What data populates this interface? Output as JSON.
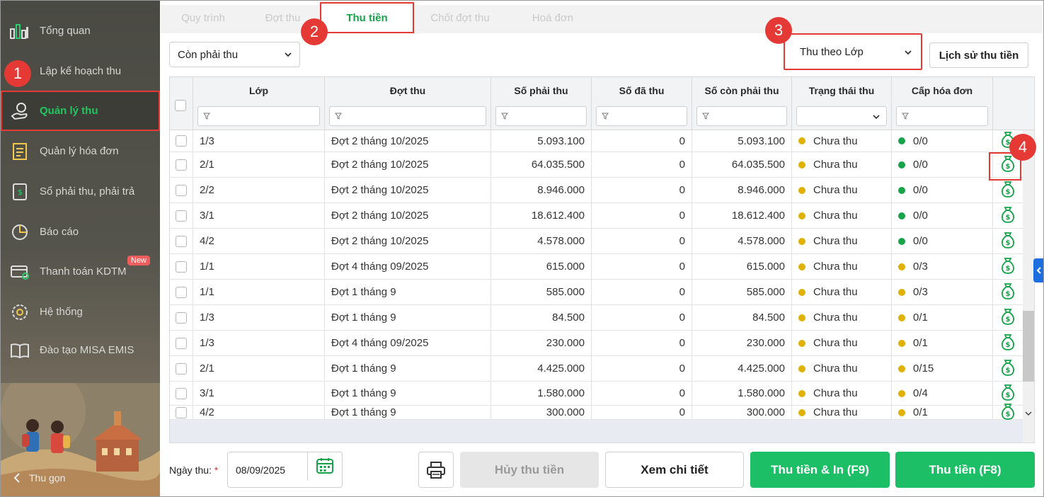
{
  "sidebar": {
    "items": [
      {
        "label": "Tổng quan",
        "icon": "chart-bars-icon"
      },
      {
        "label": "Lập kế hoạch thu",
        "icon": "calendar-plan-icon"
      },
      {
        "label": "Quản lý thu",
        "icon": "hand-coin-icon"
      },
      {
        "label": "Quản lý hóa đơn",
        "icon": "invoice-icon"
      },
      {
        "label": "Sổ phải thu, phải trả",
        "icon": "ledger-icon"
      },
      {
        "label": "Báo cáo",
        "icon": "pie-chart-icon"
      },
      {
        "label": "Thanh toán KDTM",
        "icon": "card-payment-icon"
      },
      {
        "label": "Hệ thống",
        "icon": "gear-icon"
      },
      {
        "label": "Đào tạo MISA EMIS",
        "icon": "book-icon"
      }
    ],
    "new_badge": "New",
    "collapse_label": "Thu gọn"
  },
  "tabs": [
    "Quy trình",
    "Đợt thu",
    "Thu tiền",
    "Chốt đợt thu",
    "Hoá đơn"
  ],
  "filters": {
    "status_select": "Còn phải thu",
    "group_select": "Thu theo Lớp",
    "history_button": "Lịch sử thu tiền"
  },
  "markers": [
    "1",
    "2",
    "3",
    "4"
  ],
  "table": {
    "columns": [
      "Lớp",
      "Đợt thu",
      "Số phải thu",
      "Số đã thu",
      "Số còn phải thu",
      "Trạng thái thu",
      "Cấp hóa đơn"
    ],
    "rows": [
      {
        "lop": "1/3",
        "dot": "Đợt 2 tháng 10/2025",
        "phai_thu": "5.093.100",
        "da_thu": "0",
        "con_phai_thu": "5.093.100",
        "trang_thai": "Chưa thu",
        "hoa_don": "0/0",
        "hd_color": "#16a34a"
      },
      {
        "lop": "2/1",
        "dot": "Đợt 2 tháng 10/2025",
        "phai_thu": "64.035.500",
        "da_thu": "0",
        "con_phai_thu": "64.035.500",
        "trang_thai": "Chưa thu",
        "hoa_don": "0/0",
        "hd_color": "#16a34a"
      },
      {
        "lop": "2/2",
        "dot": "Đợt 2 tháng 10/2025",
        "phai_thu": "8.946.000",
        "da_thu": "0",
        "con_phai_thu": "8.946.000",
        "trang_thai": "Chưa thu",
        "hoa_don": "0/0",
        "hd_color": "#16a34a"
      },
      {
        "lop": "3/1",
        "dot": "Đợt 2 tháng 10/2025",
        "phai_thu": "18.612.400",
        "da_thu": "0",
        "con_phai_thu": "18.612.400",
        "trang_thai": "Chưa thu",
        "hoa_don": "0/0",
        "hd_color": "#16a34a"
      },
      {
        "lop": "4/2",
        "dot": "Đợt 2 tháng 10/2025",
        "phai_thu": "4.578.000",
        "da_thu": "0",
        "con_phai_thu": "4.578.000",
        "trang_thai": "Chưa thu",
        "hoa_don": "0/0",
        "hd_color": "#16a34a"
      },
      {
        "lop": "1/1",
        "dot": "Đợt 4 tháng 09/2025",
        "phai_thu": "615.000",
        "da_thu": "0",
        "con_phai_thu": "615.000",
        "trang_thai": "Chưa thu",
        "hoa_don": "0/3",
        "hd_color": "#e0b100"
      },
      {
        "lop": "1/1",
        "dot": "Đợt 1 tháng 9",
        "phai_thu": "585.000",
        "da_thu": "0",
        "con_phai_thu": "585.000",
        "trang_thai": "Chưa thu",
        "hoa_don": "0/3",
        "hd_color": "#e0b100"
      },
      {
        "lop": "1/3",
        "dot": "Đợt 1 tháng 9",
        "phai_thu": "84.500",
        "da_thu": "0",
        "con_phai_thu": "84.500",
        "trang_thai": "Chưa thu",
        "hoa_don": "0/1",
        "hd_color": "#e0b100"
      },
      {
        "lop": "1/3",
        "dot": "Đợt 4 tháng 09/2025",
        "phai_thu": "230.000",
        "da_thu": "0",
        "con_phai_thu": "230.000",
        "trang_thai": "Chưa thu",
        "hoa_don": "0/1",
        "hd_color": "#e0b100"
      },
      {
        "lop": "2/1",
        "dot": "Đợt 1 tháng 9",
        "phai_thu": "4.425.000",
        "da_thu": "0",
        "con_phai_thu": "4.425.000",
        "trang_thai": "Chưa thu",
        "hoa_don": "0/15",
        "hd_color": "#e0b100"
      },
      {
        "lop": "3/1",
        "dot": "Đợt 1 tháng 9",
        "phai_thu": "1.580.000",
        "da_thu": "0",
        "con_phai_thu": "1.580.000",
        "trang_thai": "Chưa thu",
        "hoa_don": "0/4",
        "hd_color": "#e0b100"
      },
      {
        "lop": "4/2",
        "dot": "Đợt 1 tháng 9",
        "phai_thu": "300.000",
        "da_thu": "0",
        "con_phai_thu": "300.000",
        "trang_thai": "Chưa thu",
        "hoa_don": "0/1",
        "hd_color": "#e0b100"
      }
    ],
    "status_color": "#e0b100"
  },
  "bottom": {
    "date_label": "Ngày thu:",
    "required_mark": "*",
    "date_value": "08/09/2025",
    "cancel_button": "Hủy thu tiền",
    "detail_button": "Xem chi tiết",
    "collect_print_button": "Thu tiền & In (F9)",
    "collect_button": "Thu tiền (F8)"
  },
  "colors": {
    "accent": "#16a34a",
    "button_green": "#1dbf66",
    "marker": "#e53935"
  }
}
